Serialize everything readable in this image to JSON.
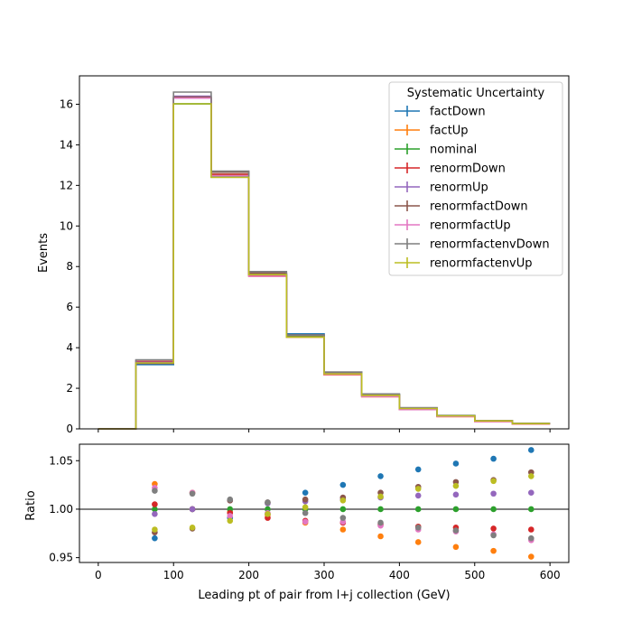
{
  "chart_data": {
    "type": "line",
    "title": "",
    "xlabel": "Leading pt of pair from l+j collection (GeV)",
    "ylabel": "Events",
    "ratio_ylabel": "Ratio",
    "xlim": [
      -25,
      625
    ],
    "ylim": [
      0,
      17.4
    ],
    "ratio_ylim": [
      0.945,
      1.067
    ],
    "x_ticks": [
      "0",
      "100",
      "200",
      "300",
      "400",
      "500",
      "600"
    ],
    "y_ticks": [
      "0",
      "2",
      "4",
      "6",
      "8",
      "10",
      "12",
      "14",
      "16"
    ],
    "ratio_y_ticks": [
      "0.95",
      "1.00",
      "1.05"
    ],
    "legend": {
      "title": "Systematic Uncertainty",
      "placement": "top-right"
    },
    "bin_edges": [
      0,
      50,
      100,
      150,
      200,
      250,
      300,
      350,
      400,
      450,
      500,
      550,
      600
    ],
    "bin_centers": [
      75,
      125,
      175,
      225,
      275,
      325,
      375,
      425,
      475,
      525,
      575
    ],
    "series": [
      {
        "name": "factDown",
        "color": "#1f77b4",
        "values": [
          0,
          3.17,
          16.02,
          12.42,
          7.58,
          4.68,
          2.78,
          1.7,
          1.03,
          0.66,
          0.4,
          0.27
        ],
        "ratio": [
          0.97,
          1.0,
          0.991,
          0.995,
          1.017,
          1.025,
          1.034,
          1.041,
          1.047,
          1.052,
          1.061
        ]
      },
      {
        "name": "factUp",
        "color": "#ff7f0e",
        "values": [
          0,
          3.35,
          16.3,
          12.52,
          7.52,
          4.52,
          2.66,
          1.58,
          0.95,
          0.6,
          0.36,
          0.24
        ],
        "ratio": [
          1.026,
          1.017,
          0.997,
          0.994,
          0.986,
          0.979,
          0.972,
          0.966,
          0.961,
          0.957,
          0.951
        ]
      },
      {
        "name": "nominal",
        "color": "#2ca02c",
        "values": [
          0,
          3.27,
          16.02,
          12.55,
          7.62,
          4.58,
          2.74,
          1.64,
          0.99,
          0.63,
          0.38,
          0.26
        ],
        "ratio": [
          1.0,
          1.0,
          1.0,
          1.0,
          1.0,
          1.0,
          1.0,
          1.0,
          1.0,
          1.0,
          1.0
        ]
      },
      {
        "name": "renormDown",
        "color": "#d62728",
        "values": [
          0,
          3.3,
          16.3,
          12.55,
          7.58,
          4.53,
          2.7,
          1.61,
          0.97,
          0.62,
          0.37,
          0.25
        ],
        "ratio": [
          1.005,
          1.0,
          0.996,
          0.991,
          0.988,
          0.986,
          0.984,
          0.982,
          0.981,
          0.98,
          0.979
        ]
      },
      {
        "name": "renormUp",
        "color": "#9467bd",
        "values": [
          0,
          3.28,
          16.4,
          12.67,
          7.67,
          4.62,
          2.76,
          1.66,
          1.0,
          0.64,
          0.39,
          0.26
        ],
        "ratio": [
          0.995,
          1.0,
          1.009,
          1.006,
          1.008,
          1.01,
          1.012,
          1.014,
          1.015,
          1.016,
          1.017
        ]
      },
      {
        "name": "renormfactDown",
        "color": "#8c564b",
        "values": [
          0,
          3.22,
          16.35,
          12.65,
          7.68,
          4.63,
          2.79,
          1.68,
          1.02,
          0.65,
          0.4,
          0.27
        ],
        "ratio": [
          0.976,
          0.98,
          1.009,
          1.007,
          1.01,
          1.012,
          1.017,
          1.023,
          1.028,
          1.03,
          1.038
        ]
      },
      {
        "name": "renormfactUp",
        "color": "#e377c2",
        "values": [
          0,
          3.38,
          16.3,
          12.48,
          7.52,
          4.52,
          2.68,
          1.59,
          0.95,
          0.61,
          0.36,
          0.25
        ],
        "ratio": [
          1.022,
          1.017,
          0.993,
          0.996,
          0.987,
          0.987,
          0.983,
          0.979,
          0.977,
          0.974,
          0.968
        ]
      },
      {
        "name": "renormfactenvDown",
        "color": "#7f7f7f",
        "values": [
          0,
          3.4,
          16.6,
          12.7,
          7.75,
          4.62,
          2.8,
          1.72,
          1.04,
          0.66,
          0.4,
          0.27
        ],
        "ratio": [
          1.019,
          1.016,
          1.01,
          1.007,
          0.996,
          0.991,
          0.986,
          0.981,
          0.978,
          0.973,
          0.97
        ]
      },
      {
        "name": "renormfactenvUp",
        "color": "#bcbd22",
        "values": [
          0,
          3.25,
          16.02,
          12.4,
          7.6,
          4.52,
          2.71,
          1.65,
          1.0,
          0.64,
          0.39,
          0.26
        ],
        "ratio": [
          0.979,
          0.981,
          0.988,
          0.995,
          1.002,
          1.009,
          1.013,
          1.021,
          1.024,
          1.029,
          1.034
        ]
      }
    ]
  }
}
